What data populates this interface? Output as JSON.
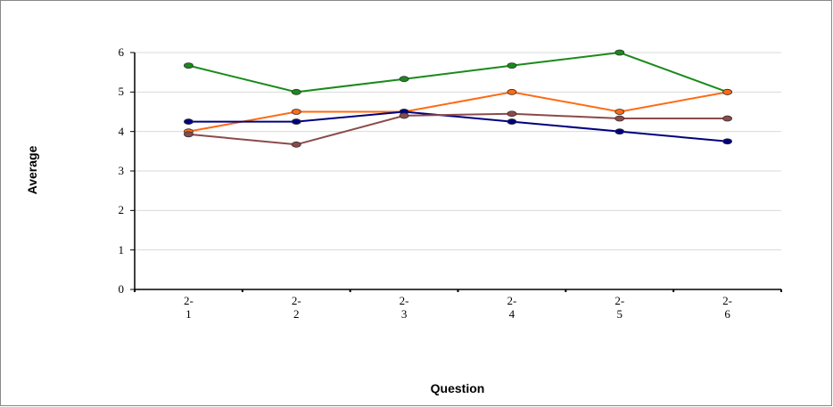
{
  "chart_data": {
    "type": "line",
    "categories": [
      "2-1",
      "2-2",
      "2-3",
      "2-4",
      "2-5",
      "2-6"
    ],
    "series": [
      {
        "color": "#1a8a1a",
        "values": [
          5.67,
          5,
          5.33,
          5.67,
          6,
          5
        ]
      },
      {
        "color": "#ff6a13",
        "values": [
          4,
          4.5,
          4.5,
          5,
          4.5,
          5
        ]
      },
      {
        "color": "#00007f",
        "values": [
          4.25,
          4.25,
          4.5,
          4.25,
          4,
          3.75
        ]
      },
      {
        "color": "#8b4a4a",
        "values": [
          3.93,
          3.67,
          4.4,
          4.45,
          4.33,
          4.33
        ]
      }
    ],
    "ylim": [
      0,
      6
    ],
    "yticks": [
      0,
      1,
      2,
      3,
      4,
      5,
      6
    ],
    "grid": true,
    "y_label": "Average",
    "x_label": "Question"
  }
}
